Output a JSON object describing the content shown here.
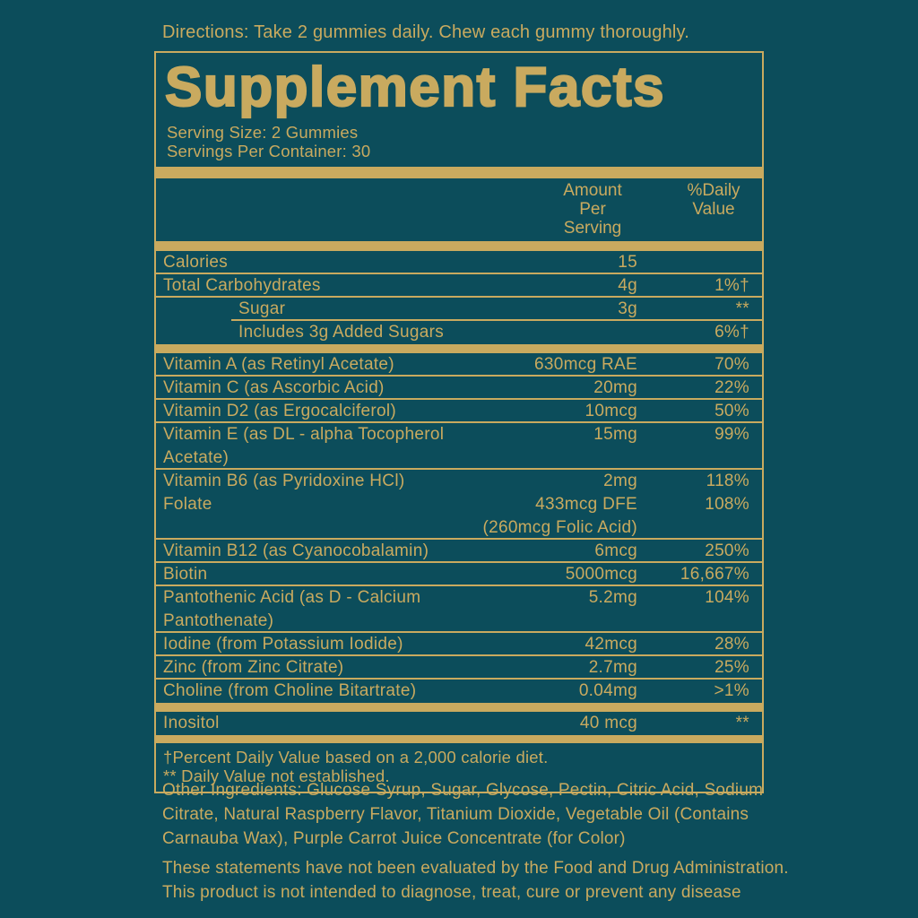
{
  "colors": {
    "background": "#0C4D5B",
    "gold": "#C9AA5F"
  },
  "directions": "Directions: Take 2 gummies daily. Chew each gummy thoroughly.",
  "panel": {
    "title": "Supplement Facts",
    "serving_size": "Serving Size: 2 Gummies",
    "servings_per_container": "Servings Per Container: 30"
  },
  "table": {
    "header": {
      "amount": [
        "Amount Per",
        "Serving"
      ],
      "dv": [
        "%Daily",
        "Value"
      ]
    },
    "rows": [
      {
        "name": "Calories",
        "amount": "15",
        "dv": ""
      },
      {
        "name": "Total Carbohydrates",
        "amount": "4g",
        "dv": "1%†"
      },
      {
        "name": "Sugar",
        "amount": "3g",
        "dv": "**"
      },
      {
        "name": "Includes 3g Added Sugars",
        "amount": "",
        "dv": "6%†"
      },
      {
        "name": "Vitamin A (as Retinyl Acetate)",
        "amount": "630mcg RAE",
        "dv": "70%"
      },
      {
        "name": "Vitamin C (as Ascorbic Acid)",
        "amount": "20mg",
        "dv": "22%"
      },
      {
        "name": "Vitamin D2 (as Ergocalciferol)",
        "amount": "10mcg",
        "dv": "50%"
      },
      {
        "name": "Vitamin E (as DL - alpha Tocopherol",
        "name2": "Acetate)",
        "amount": "15mg",
        "dv": "99%"
      },
      {
        "name": "Vitamin B6 (as Pyridoxine HCl)",
        "amount": "2mg",
        "dv": "118%"
      },
      {
        "name": "Folate",
        "amount": "433mcg DFE",
        "dv": "108%"
      },
      {
        "name": "",
        "amount": "(260mcg Folic Acid)",
        "dv": ""
      },
      {
        "name": "Vitamin B12 (as Cyanocobalamin)",
        "amount": "6mcg",
        "dv": "250%"
      },
      {
        "name": "Biotin",
        "amount": "5000mcg",
        "dv": "16,667%"
      },
      {
        "name": "Pantothenic Acid (as D - Calcium",
        "name2": "Pantothenate)",
        "amount": "5.2mg",
        "dv": "104%"
      },
      {
        "name": "Iodine (from Potassium Iodide)",
        "amount": "42mcg",
        "dv": "28%"
      },
      {
        "name": "Zinc (from Zinc Citrate)",
        "amount": "2.7mg",
        "dv": "25%"
      },
      {
        "name": "Choline (from Choline Bitartrate)",
        "amount": "0.04mg",
        "dv": ">1%"
      },
      {
        "name": "Inositol",
        "amount": "40 mcg",
        "dv": "**"
      }
    ]
  },
  "footnotes": [
    "†Percent Daily Value based on a 2,000 calorie diet.",
    "** Daily Value not established."
  ],
  "other_ingredients": {
    "lines": [
      "Other Ingredients: Glucose Syrup, Sugar, Glycose, Pectin, Citric Acid, Sodium",
      "Citrate, Natural Raspberry Flavor, Titanium Dioxide, Vegetable Oil (Contains",
      "Carnauba Wax), Purple Carrot Juice Concentrate (for Color)"
    ]
  },
  "disclaimer": {
    "lines": [
      "These statements have not been evaluated by the Food and Drug Administration.",
      "This product is not intended to diagnose, treat, cure or prevent any disease"
    ]
  }
}
